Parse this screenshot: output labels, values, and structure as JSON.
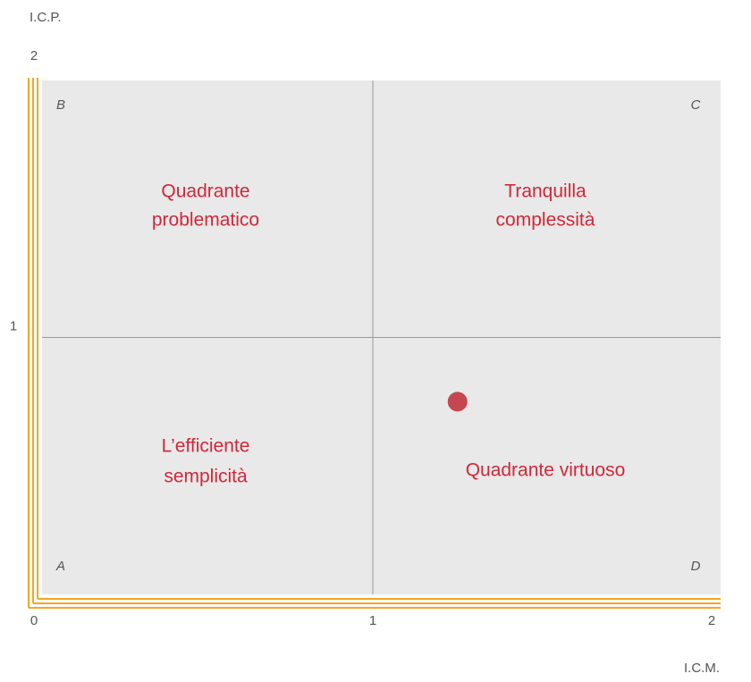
{
  "chart_data": {
    "type": "scatter",
    "x_label": "I.C.M.",
    "y_label": "I.C.P.",
    "xlim": [
      0,
      2
    ],
    "ylim": [
      0,
      2
    ],
    "xticks": [
      0,
      1,
      2
    ],
    "yticks": [
      1,
      2
    ],
    "x": [
      1.25
    ],
    "values": [
      0.75
    ],
    "color": "#c6474f",
    "quadrants": [
      {
        "letter": "B",
        "lines": [
          "Quadrante",
          "problematico"
        ]
      },
      {
        "letter": "C",
        "lines": [
          "Tranquilla",
          "complessità"
        ]
      },
      {
        "letter": "A",
        "lines": [
          "L’efficiente",
          "semplicità"
        ]
      },
      {
        "letter": "D",
        "lines": [
          "Quadrante virtuoso"
        ]
      }
    ]
  }
}
